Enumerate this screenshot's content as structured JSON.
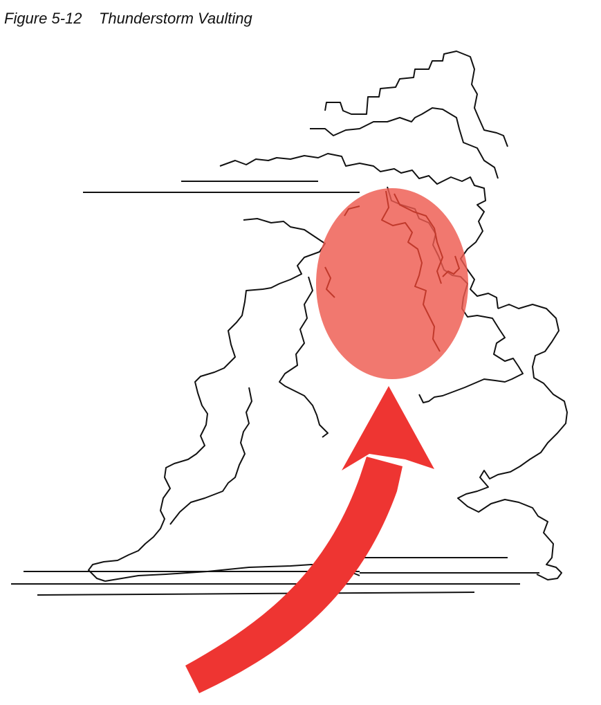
{
  "figure": {
    "caption": "Figure 5-12    Thunderstorm Vaulting"
  },
  "diagram": {
    "elements": [
      {
        "name": "thunderstorm-cloud-outline",
        "shape": "irregular line drawing"
      },
      {
        "name": "vault-region",
        "shape": "ellipse"
      },
      {
        "name": "updraft-arrow",
        "shape": "curved arrow"
      }
    ],
    "colors": {
      "outline": "#111111",
      "vault_fill": "#ee5a4f",
      "vault_outline": "#c0392b",
      "arrow": "#ee3532"
    },
    "icons": {
      "cloud": "cloud-outline-icon",
      "arrow": "curved-arrow-up-icon"
    }
  }
}
